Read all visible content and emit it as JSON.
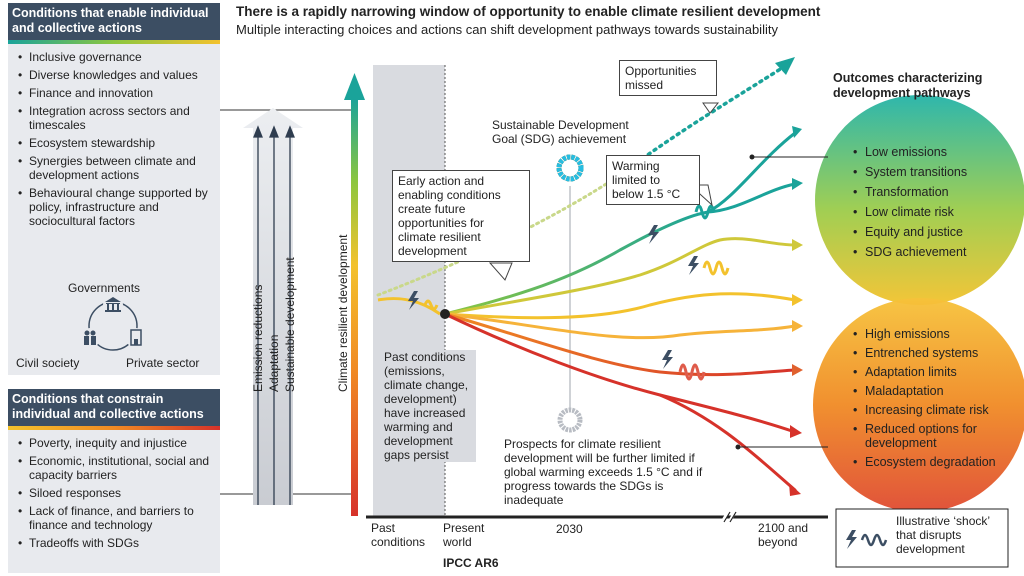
{
  "header": {
    "title": "There is a rapidly narrowing window of opportunity to enable climate resilient development",
    "subtitle": "Multiple interacting choices and actions can shift development pathways towards sustainability"
  },
  "enable_panel": {
    "title": "Conditions that enable individual and collective actions",
    "items": [
      "Inclusive governance",
      "Diverse knowledges and values",
      "Finance and innovation",
      "Integration across sectors and timescales",
      "Ecosystem stewardship",
      "Synergies between climate and development actions",
      "Behavioural change supported by policy, infrastructure and sociocultural factors"
    ],
    "actors": {
      "top": "Governments",
      "left": "Civil society",
      "right": "Private sector"
    }
  },
  "constrain_panel": {
    "title": "Conditions that constrain individual and collective actions",
    "items": [
      "Poverty, inequity and injustice",
      "Economic, institutional, social and capacity barriers",
      "Siloed responses",
      "Lack of finance, and barriers to finance and technology",
      "Tradeoffs with SDGs"
    ]
  },
  "arrows": {
    "labels": [
      "Emission reductions",
      "Adaptation",
      "Sustainable development"
    ],
    "axis_label": "Climate resilient development"
  },
  "callouts": {
    "opportunities_missed": "Opportunities missed",
    "sdg": "Sustainable Development Goal (SDG) achievement",
    "early_action": "Early action and enabling conditions create future opportunities for climate resilient development",
    "warming": "Warming limited to below 1.5 °C",
    "past_conditions": "Past conditions (emissions, climate change, development) have increased warming and development gaps persist",
    "prospects": "Prospects for climate resilient development will be further limited if global warming exceeds 1.5 °C and if progress towards the SDGs is inadequate"
  },
  "outcomes": {
    "title": "Outcomes characterizing development pathways",
    "good": [
      "Low emissions",
      "System transitions",
      "Transformation",
      "Low climate risk",
      "Equity and justice",
      "SDG achievement"
    ],
    "bad": [
      "High emissions",
      "Entrenched systems",
      "Adaptation limits",
      "Maladaptation",
      "Increasing climate risk",
      "Reduced options for development",
      "Ecosystem degradation"
    ]
  },
  "timeline": {
    "past": "Past conditions",
    "present": "Present world",
    "t2030": "2030",
    "t2100": "2100 and beyond",
    "source": "IPCC AR6"
  },
  "legend": {
    "shock": "Illustrative ‘shock’ that disrupts development"
  },
  "colors": {
    "teal": "#1aa39a",
    "yellow": "#f3c22d",
    "orange": "#f08a24",
    "red": "#d6322a",
    "navy": "#3c4e63"
  }
}
